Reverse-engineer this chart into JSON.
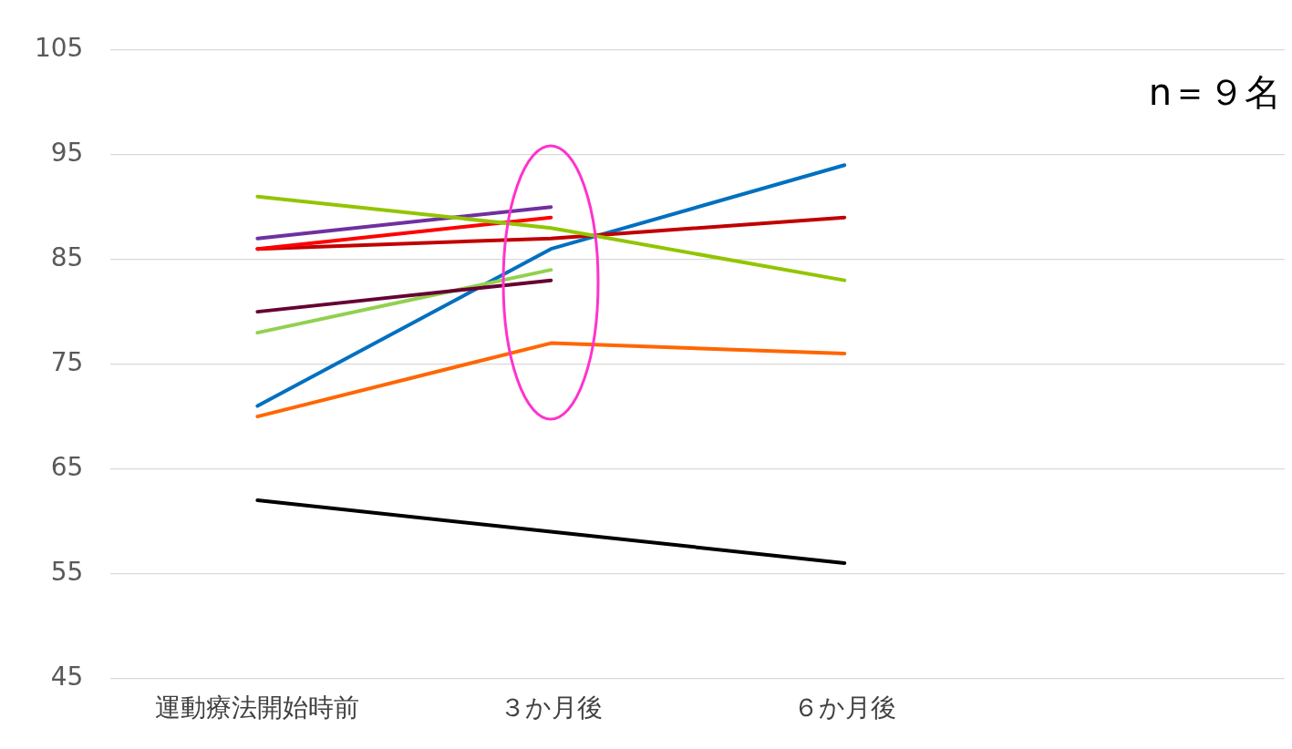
{
  "chart_data": {
    "type": "line",
    "categories": [
      "運動療法開始時前",
      "３か月後",
      "６か月後",
      null
    ],
    "series": [
      {
        "color": "#92c500",
        "values": [
          91,
          88,
          83,
          null
        ]
      },
      {
        "color": "#7030a0",
        "values": [
          87,
          90,
          null,
          null
        ]
      },
      {
        "color": "#ff0000",
        "values": [
          86,
          89,
          null,
          null
        ]
      },
      {
        "color": "#c00000",
        "values": [
          86,
          87,
          89,
          null
        ]
      },
      {
        "color": "#660033",
        "values": [
          80,
          83,
          null,
          null
        ]
      },
      {
        "color": "#92d050",
        "values": [
          78,
          84,
          null,
          null
        ]
      },
      {
        "color": "#0070c0",
        "values": [
          71,
          86,
          94,
          null
        ]
      },
      {
        "color": "#ff6600",
        "values": [
          70,
          77,
          76,
          null
        ]
      },
      {
        "color": "#000000",
        "values": [
          62,
          59,
          56,
          null
        ]
      }
    ],
    "ylim": [
      45,
      105
    ],
    "yticks": [
      45,
      55,
      65,
      75,
      85,
      95,
      105
    ],
    "grid": "y",
    "legend": false,
    "marker": "none",
    "line_style": "solid",
    "annotations": [
      "n＝９名"
    ]
  }
}
